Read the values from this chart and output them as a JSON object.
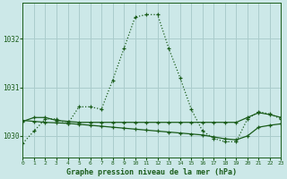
{
  "title": "Graphe pression niveau de la mer (hPa)",
  "bg_color": "#cce8e8",
  "grid_color": "#aacccc",
  "line_color": "#1a5c1a",
  "x_min": 0,
  "x_max": 23,
  "y_min": 1029.55,
  "y_max": 1032.75,
  "yticks": [
    1030,
    1031,
    1032
  ],
  "xticks": [
    0,
    1,
    2,
    3,
    4,
    5,
    6,
    7,
    8,
    9,
    10,
    11,
    12,
    13,
    14,
    15,
    16,
    17,
    18,
    19,
    20,
    21,
    22,
    23
  ],
  "series1_x": [
    0,
    1,
    2,
    3,
    4,
    5,
    6,
    7,
    8,
    9,
    10,
    11,
    12,
    13,
    14,
    15,
    16,
    17,
    18,
    19,
    20,
    21,
    22,
    23
  ],
  "series1_y": [
    1029.85,
    1030.1,
    1030.35,
    1030.35,
    1030.25,
    1030.6,
    1030.6,
    1030.55,
    1031.15,
    1031.8,
    1032.45,
    1032.5,
    1032.5,
    1031.8,
    1031.2,
    1030.55,
    1030.1,
    1029.95,
    1029.88,
    1029.88,
    1030.35,
    1030.5,
    1030.45,
    1030.35
  ],
  "series2_x": [
    0,
    1,
    2,
    3,
    4,
    5,
    6,
    7,
    8,
    9,
    10,
    11,
    12,
    13,
    14,
    15,
    16,
    17,
    18,
    19,
    20,
    21,
    22,
    23
  ],
  "series2_y": [
    1030.3,
    1030.38,
    1030.38,
    1030.32,
    1030.3,
    1030.28,
    1030.28,
    1030.28,
    1030.28,
    1030.28,
    1030.28,
    1030.28,
    1030.28,
    1030.28,
    1030.28,
    1030.28,
    1030.28,
    1030.28,
    1030.28,
    1030.28,
    1030.38,
    1030.48,
    1030.44,
    1030.38
  ],
  "series3_x": [
    0,
    1,
    2,
    3,
    4,
    5,
    6,
    7,
    8,
    9,
    10,
    11,
    12,
    13,
    14,
    15,
    16,
    17,
    18,
    19,
    20,
    21,
    22,
    23
  ],
  "series3_y": [
    1030.32,
    1030.3,
    1030.28,
    1030.27,
    1030.26,
    1030.24,
    1030.22,
    1030.2,
    1030.18,
    1030.16,
    1030.14,
    1030.12,
    1030.1,
    1030.08,
    1030.06,
    1030.04,
    1030.02,
    1029.98,
    1029.94,
    1029.92,
    1030.0,
    1030.18,
    1030.22,
    1030.25
  ]
}
